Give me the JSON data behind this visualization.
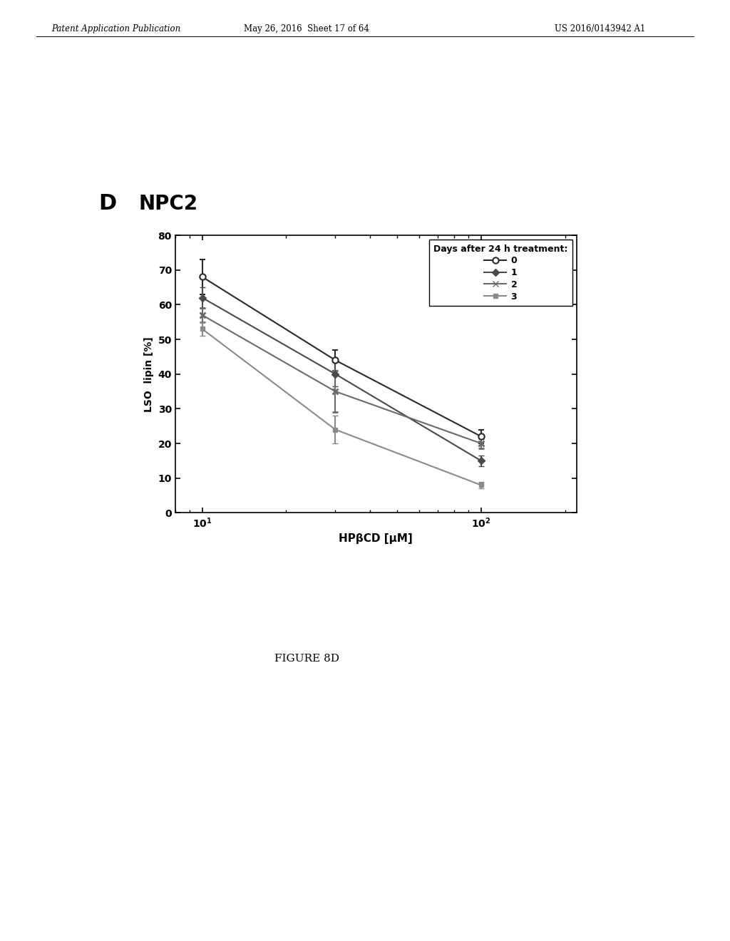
{
  "title": "NPC2",
  "panel_label": "D",
  "xlabel": "HPβCD [μM]",
  "ylabel": "LSO  lipin [%]",
  "legend_title": "Days after 24 h treatment:",
  "legend_labels": [
    "0",
    "1",
    "2",
    "3"
  ],
  "xvalues": [
    10,
    30,
    100
  ],
  "series": {
    "0": {
      "y": [
        68,
        44,
        22
      ],
      "yerr": [
        5,
        3,
        2
      ]
    },
    "1": {
      "y": [
        62,
        40,
        15
      ],
      "yerr": [
        3,
        3.5,
        1.5
      ]
    },
    "2": {
      "y": [
        57,
        35,
        20
      ],
      "yerr": [
        2,
        6,
        1.5
      ]
    },
    "3": {
      "y": [
        53,
        24,
        8
      ],
      "yerr": [
        2,
        4,
        1
      ]
    }
  },
  "ylim": [
    0,
    80
  ],
  "background_color": "#ffffff",
  "header_text_left": "Patent Application Publication",
  "header_text_mid": "May 26, 2016  Sheet 17 of 64",
  "header_text_right": "US 2016/0143942 A1",
  "footer_text": "FIGURE 8D"
}
